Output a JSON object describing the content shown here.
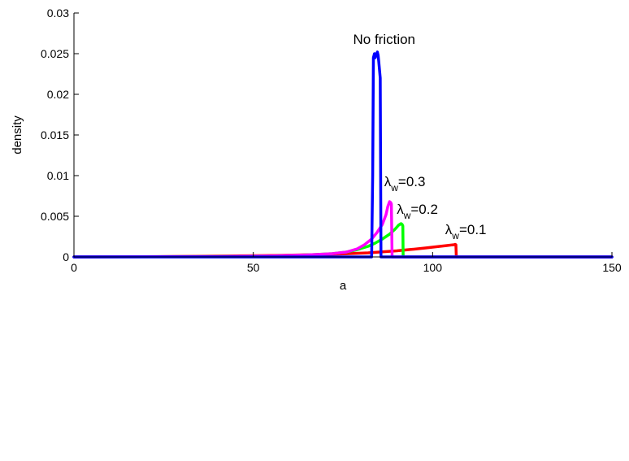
{
  "chart_data": {
    "type": "line",
    "title": "",
    "xlabel": "a",
    "ylabel": "density",
    "xlim": [
      0,
      150
    ],
    "ylim": [
      0,
      0.03
    ],
    "grid": false,
    "xticks": [
      0,
      50,
      100,
      150
    ],
    "xtick_labels": [
      "0",
      "50",
      "100",
      "150"
    ],
    "yticks": [
      0,
      0.005,
      0.01,
      0.015,
      0.02,
      0.025,
      0.03
    ],
    "ytick_labels": [
      "0",
      "0.005",
      "0.01",
      "0.015",
      "0.02",
      "0.025",
      "0.03"
    ],
    "series": [
      {
        "color": "#ff0000",
        "x": [
          0,
          20,
          40,
          55,
          65,
          72,
          78,
          82,
          86,
          90,
          94,
          98,
          101,
          104,
          105.5,
          106,
          106.3,
          106.5,
          106.6,
          107,
          120,
          150
        ],
        "y": [
          0,
          3e-05,
          0.0001,
          0.00018,
          0.00026,
          0.00033,
          0.00042,
          0.0005,
          0.00062,
          0.00075,
          0.00092,
          0.0011,
          0.00125,
          0.0014,
          0.00148,
          0.0015,
          0.00155,
          0.0015,
          0,
          0,
          0,
          0
        ]
      },
      {
        "color": "#00ff00",
        "x": [
          0,
          40,
          55,
          65,
          72,
          76,
          79,
          82,
          84,
          86,
          88,
          89.5,
          90.5,
          91.2,
          91.5,
          91.7,
          91.8,
          93,
          150
        ],
        "y": [
          0,
          4e-05,
          0.00012,
          0.00025,
          0.0004,
          0.0006,
          0.0009,
          0.0013,
          0.0017,
          0.0022,
          0.0028,
          0.0034,
          0.0039,
          0.0041,
          0.004,
          0.0038,
          0,
          0,
          0
        ]
      },
      {
        "color": "#ff00ff",
        "x": [
          0,
          40,
          55,
          65,
          72,
          76,
          79,
          81,
          83,
          84.5,
          86,
          87,
          87.5,
          88,
          88.3,
          88.5,
          88.7,
          90,
          150
        ],
        "y": [
          0,
          4e-05,
          0.00012,
          0.00025,
          0.0004,
          0.0006,
          0.001,
          0.0015,
          0.0022,
          0.003,
          0.004,
          0.0052,
          0.0062,
          0.0068,
          0.0067,
          0.0065,
          0,
          0,
          0
        ]
      },
      {
        "color": "#0000ff",
        "x": [
          0,
          80,
          82,
          83,
          83.3,
          83.5,
          83.8,
          84.0,
          84.2,
          84.4,
          84.6,
          84.8,
          85.0,
          85.2,
          85.4,
          85.6,
          85.8,
          150
        ],
        "y": [
          0,
          0,
          0,
          0,
          0.01,
          0.0245,
          0.025,
          0.0245,
          0.0248,
          0.025,
          0.0252,
          0.0248,
          0.024,
          0.023,
          0.022,
          0,
          0,
          0
        ]
      }
    ],
    "annotations": [
      {
        "text": "No friction",
        "x": 86.5,
        "y": 0.0262
      },
      {
        "base": "λ",
        "sub": "w",
        "suffix": "=0.3",
        "x": 86.5,
        "y": 0.0087
      },
      {
        "base": "λ",
        "sub": "w",
        "suffix": "=0.2",
        "x": 90,
        "y": 0.0053
      },
      {
        "base": "λ",
        "sub": "w",
        "suffix": "=0.1",
        "x": 103.5,
        "y": 0.0028
      }
    ]
  }
}
